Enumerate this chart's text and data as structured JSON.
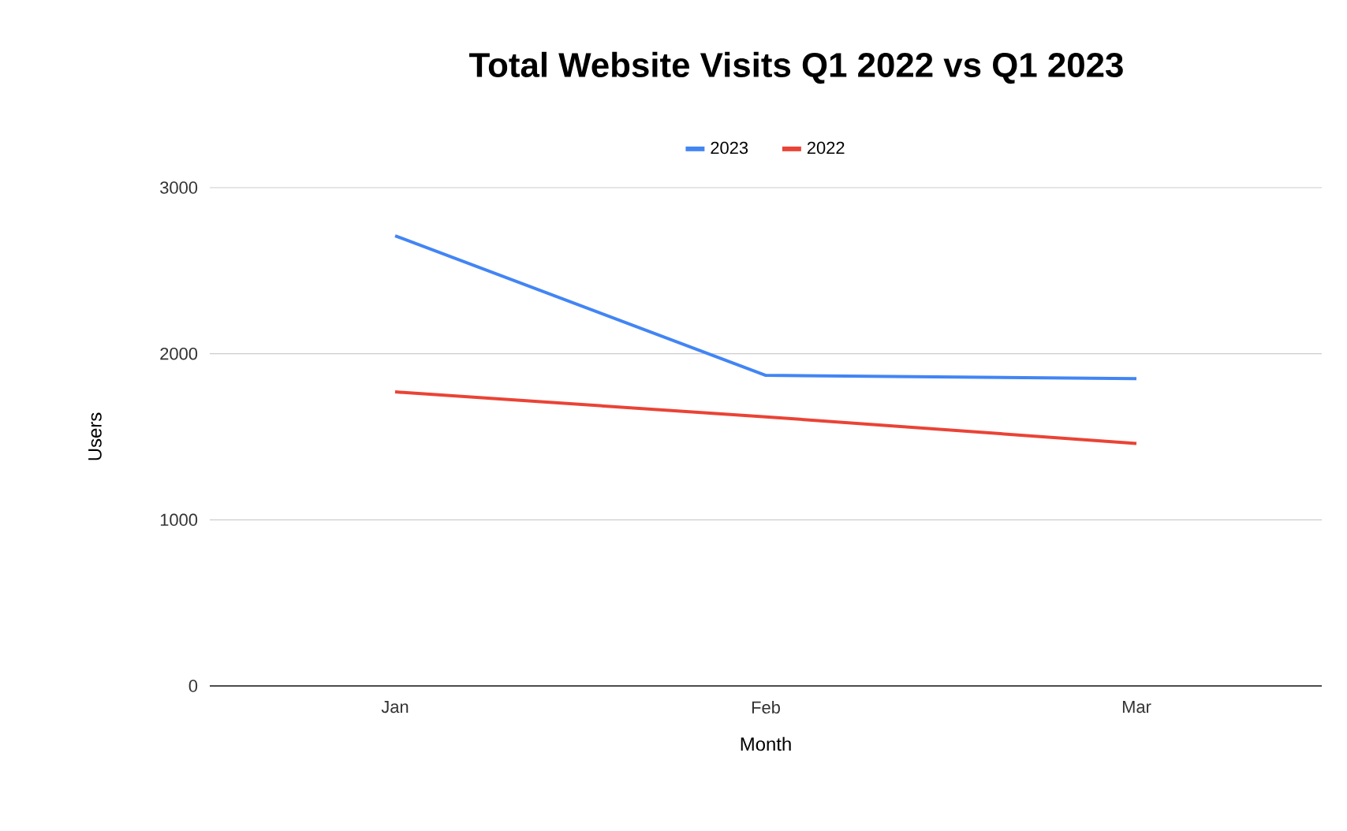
{
  "chart_data": {
    "type": "line",
    "title": "Total Website Visits Q1 2022 vs Q1 2023",
    "xlabel": "Month",
    "ylabel": "Users",
    "categories": [
      "Jan",
      "Feb",
      "Mar"
    ],
    "series": [
      {
        "name": "2023",
        "color": "#4285f4",
        "values": [
          2710,
          1870,
          1850
        ]
      },
      {
        "name": "2022",
        "color": "#ea4335",
        "values": [
          1770,
          1620,
          1460
        ]
      }
    ],
    "ylim": [
      0,
      3000
    ],
    "yticks": [
      0,
      1000,
      2000,
      3000
    ],
    "grid": "y",
    "legend": "top",
    "marker": "none",
    "line_style": "solid"
  }
}
